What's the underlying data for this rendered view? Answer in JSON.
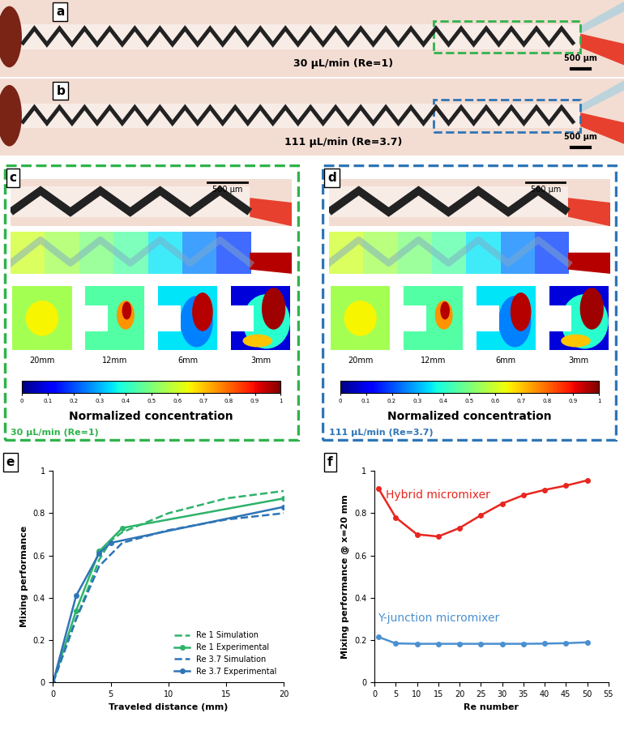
{
  "figure": {
    "channels": [
      {
        "label": "a",
        "caption": "30 µL/min (Re=1)",
        "scale_bar": "500 µm",
        "color": "#2eb34a"
      },
      {
        "label": "b",
        "caption": "111 µL/min (Re=3.7)",
        "scale_bar": "500 µm",
        "color": "#2e75b6"
      }
    ],
    "details": [
      {
        "label": "c",
        "caption": "30 µL/min (Re=1)",
        "scale_bar": "500 µm",
        "color": "#2eb34a",
        "sections": [
          "20mm",
          "12mm",
          "6mm",
          "3mm"
        ]
      },
      {
        "label": "d",
        "caption": "111 µL/min (Re=3.7)",
        "scale_bar": "500 µm",
        "color": "#2e75b6",
        "sections": [
          "20mm",
          "12mm",
          "6mm",
          "3mm"
        ]
      }
    ],
    "colorbar": {
      "label": "Normalized concentration",
      "range": [
        0,
        1
      ],
      "ticks": [
        0,
        0.1,
        0.2,
        0.3,
        0.4,
        0.5,
        0.6,
        0.7,
        0.8,
        0.9,
        1
      ]
    }
  },
  "chart_panels": [
    "e",
    "f"
  ],
  "chart_data": [
    {
      "type": "line",
      "x_label": "Traveled distance (mm)",
      "y_label": "Mixing performance",
      "xlim": [
        0,
        20
      ],
      "xticks": [
        0,
        5,
        10,
        15,
        20
      ],
      "ylim": [
        0,
        1
      ],
      "yticks": [
        0,
        0.2,
        0.4,
        0.6,
        0.8,
        1
      ],
      "legend": "lower right",
      "series": [
        {
          "name": "Re 1 Simulation",
          "color": "#2eb36b",
          "line_style": "dashed",
          "marker": "none",
          "x": [
            0,
            2,
            4,
            5,
            6,
            10,
            15,
            20
          ],
          "values": [
            0,
            0.3,
            0.58,
            0.67,
            0.71,
            0.8,
            0.87,
            0.905
          ]
        },
        {
          "name": "Re 1 Experimental",
          "color": "#2eb36b",
          "line_style": "solid",
          "marker": "circle",
          "x": [
            0,
            2,
            4,
            6,
            20
          ],
          "values": [
            0,
            0.34,
            0.62,
            0.73,
            0.87
          ]
        },
        {
          "name": "Re 3.7 Simulation",
          "color": "#2e75b6",
          "line_style": "dashed",
          "marker": "none",
          "x": [
            0,
            2,
            4,
            6,
            10,
            15,
            20
          ],
          "values": [
            0,
            0.3,
            0.55,
            0.66,
            0.72,
            0.77,
            0.8
          ]
        },
        {
          "name": "Re 3.7 Experimental",
          "color": "#2e75b6",
          "line_style": "solid",
          "marker": "circle",
          "x": [
            0,
            2,
            4,
            5,
            20
          ],
          "values": [
            0,
            0.41,
            0.61,
            0.66,
            0.83
          ]
        }
      ]
    },
    {
      "type": "line",
      "x_label": "Re number",
      "y_label": "Mixing performance @ x=20 mm",
      "xlim": [
        0,
        55
      ],
      "xticks": [
        0,
        5,
        10,
        15,
        20,
        25,
        30,
        35,
        40,
        45,
        50,
        55
      ],
      "ylim": [
        0,
        1
      ],
      "yticks": [
        0,
        0.2,
        0.4,
        0.6,
        0.8,
        1
      ],
      "x": [
        1,
        5,
        10,
        15,
        20,
        25,
        30,
        35,
        40,
        45,
        50
      ],
      "series": [
        {
          "name": "Hybrid micromixer",
          "color": "#e8261f",
          "line_style": "solid",
          "marker": "circle",
          "values": [
            0.915,
            0.78,
            0.7,
            0.69,
            0.73,
            0.79,
            0.845,
            0.885,
            0.91,
            0.93,
            0.955
          ]
        },
        {
          "name": "Y-junction micromixer",
          "color": "#4a90d0",
          "line_style": "solid",
          "marker": "circle",
          "values": [
            0.215,
            0.185,
            0.183,
            0.183,
            0.183,
            0.183,
            0.183,
            0.183,
            0.184,
            0.186,
            0.19
          ]
        }
      ]
    }
  ]
}
